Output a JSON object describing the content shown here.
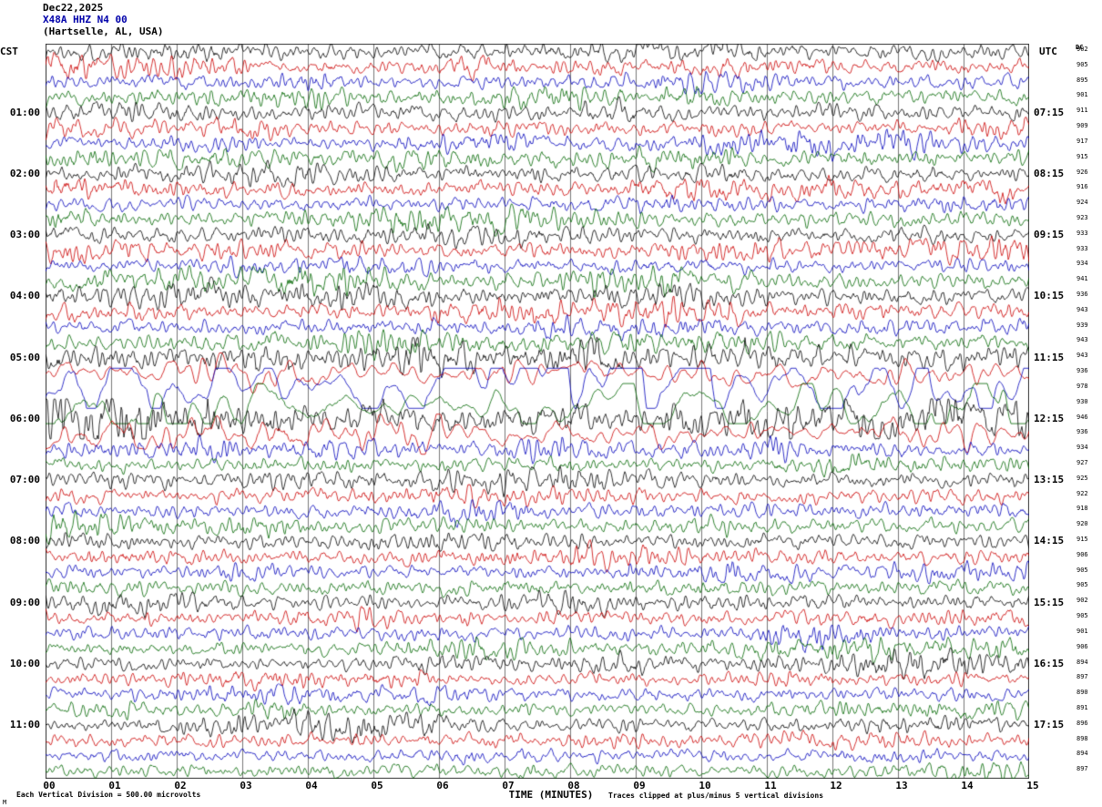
{
  "header": {
    "date": "Dec22,2025",
    "station": "X48A HHZ N4 00",
    "location": "(Hartselle, AL, USA)"
  },
  "left_axis": {
    "label": "CST"
  },
  "right_axis": {
    "label": "UTC",
    "dc_label": "DC"
  },
  "x_axis": {
    "label": "TIME (MINUTES)",
    "ticks": [
      "00",
      "01",
      "02",
      "03",
      "04",
      "05",
      "06",
      "07",
      "08",
      "09",
      "10",
      "11",
      "12",
      "13",
      "14",
      "15"
    ]
  },
  "footer": {
    "scale": "Each Vertical Division =  500.00 microvolts",
    "clip_note": "Traces clipped at plus/minus 5 vertical divisions",
    "corner_mark": "M"
  },
  "chart_data": {
    "type": "line",
    "subtype": "helicorder-seismogram",
    "minutes_per_line": 15,
    "x_range_minutes": [
      0,
      15
    ],
    "grid": "vertical-every-minute",
    "seed": 1337,
    "color_cycle": [
      "black",
      "red",
      "blue",
      "green"
    ],
    "trace_colors": {
      "black": "#000000",
      "red": "#cc0000",
      "blue": "#0000bb",
      "green": "#006600"
    },
    "rows": [
      {
        "dc": 902,
        "amp": 1.0,
        "f": "hi"
      },
      {
        "dc": 905,
        "amp": 0.95,
        "f": "hi"
      },
      {
        "dc": 895,
        "amp": 0.9,
        "f": "hi"
      },
      {
        "dc": 901,
        "amp": 0.95,
        "f": "hi"
      },
      {
        "dc": 911,
        "amp": 1.0,
        "f": "hi",
        "cst": "01:00",
        "utc": "07:15"
      },
      {
        "dc": 909,
        "amp": 0.95,
        "f": "hi"
      },
      {
        "dc": 917,
        "amp": 0.9,
        "f": "hi"
      },
      {
        "dc": 915,
        "amp": 0.95,
        "f": "hi"
      },
      {
        "dc": 926,
        "amp": 1.0,
        "f": "hi",
        "cst": "02:00",
        "utc": "08:15"
      },
      {
        "dc": 916,
        "amp": 1.0,
        "f": "hi"
      },
      {
        "dc": 924,
        "amp": 0.9,
        "f": "hi"
      },
      {
        "dc": 923,
        "amp": 0.95,
        "f": "hi"
      },
      {
        "dc": 933,
        "amp": 1.0,
        "f": "hi",
        "cst": "03:00",
        "utc": "09:15"
      },
      {
        "dc": 933,
        "amp": 1.1,
        "f": "hi"
      },
      {
        "dc": 934,
        "amp": 0.9,
        "f": "hi"
      },
      {
        "dc": 941,
        "amp": 0.95,
        "f": "hi"
      },
      {
        "dc": 936,
        "amp": 1.05,
        "f": "hi",
        "cst": "04:00",
        "utc": "10:15"
      },
      {
        "dc": 943,
        "amp": 1.0,
        "f": "hi"
      },
      {
        "dc": 939,
        "amp": 0.95,
        "f": "hi"
      },
      {
        "dc": 943,
        "amp": 1.0,
        "f": "hi"
      },
      {
        "dc": 943,
        "amp": 1.5,
        "f": "hi",
        "cst": "05:00",
        "utc": "11:15"
      },
      {
        "dc": 936,
        "amp": 1.25,
        "f": "mid"
      },
      {
        "dc": 978,
        "amp": 3.0,
        "f": "lo"
      },
      {
        "dc": 930,
        "amp": 2.4,
        "f": "lo"
      },
      {
        "dc": 946,
        "amp": 1.7,
        "f": "hi",
        "cst": "06:00",
        "utc": "12:15"
      },
      {
        "dc": 936,
        "amp": 1.2,
        "f": "mid"
      },
      {
        "dc": 934,
        "amp": 1.0,
        "f": "hi"
      },
      {
        "dc": 927,
        "amp": 0.95,
        "f": "hi"
      },
      {
        "dc": 925,
        "amp": 0.95,
        "f": "hi",
        "cst": "07:00",
        "utc": "13:15"
      },
      {
        "dc": 922,
        "amp": 0.9,
        "f": "hi"
      },
      {
        "dc": 918,
        "amp": 0.9,
        "f": "hi"
      },
      {
        "dc": 920,
        "amp": 0.9,
        "f": "hi"
      },
      {
        "dc": 915,
        "amp": 0.95,
        "f": "hi",
        "cst": "08:00",
        "utc": "14:15"
      },
      {
        "dc": 906,
        "amp": 0.9,
        "f": "hi"
      },
      {
        "dc": 905,
        "amp": 0.85,
        "f": "hi"
      },
      {
        "dc": 905,
        "amp": 0.9,
        "f": "hi"
      },
      {
        "dc": 902,
        "amp": 0.95,
        "f": "hi",
        "cst": "09:00",
        "utc": "15:15"
      },
      {
        "dc": 905,
        "amp": 0.9,
        "f": "hi"
      },
      {
        "dc": 901,
        "amp": 0.9,
        "f": "hi"
      },
      {
        "dc": 906,
        "amp": 0.85,
        "f": "hi"
      },
      {
        "dc": 894,
        "amp": 0.85,
        "f": "hi",
        "cst": "10:00",
        "utc": "16:15"
      },
      {
        "dc": 897,
        "amp": 0.8,
        "f": "hi"
      },
      {
        "dc": 890,
        "amp": 0.8,
        "f": "hi"
      },
      {
        "dc": 891,
        "amp": 0.8,
        "f": "hi"
      },
      {
        "dc": 896,
        "amp": 0.85,
        "f": "hi",
        "cst": "11:00",
        "utc": "17:15"
      },
      {
        "dc": 898,
        "amp": 0.85,
        "f": "hi"
      },
      {
        "dc": 894,
        "amp": 0.8,
        "f": "hi"
      },
      {
        "dc": 897,
        "amp": 0.8,
        "f": "hi"
      }
    ]
  }
}
